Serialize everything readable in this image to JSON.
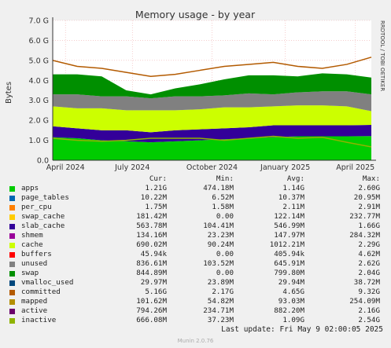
{
  "title": "Memory usage - by year",
  "ylabel": "Bytes",
  "watermark": "RRDTOOL / TOBI OETIKER",
  "y_ticks": [
    "0.0",
    "1.0 G",
    "2.0 G",
    "3.0 G",
    "4.0 G",
    "5.0 G",
    "6.0 G",
    "7.0 G"
  ],
  "x_ticks": [
    "April 2024",
    "July 2024",
    "October 2024",
    "January 2025",
    "April 2025"
  ],
  "legend_header": {
    "cur": "Cur:",
    "min": "Min:",
    "avg": "Avg:",
    "max": "Max:"
  },
  "legend": [
    {
      "name": "apps",
      "color": "#00cc00",
      "cur": "1.21G",
      "min": "474.18M",
      "avg": "1.14G",
      "max": "2.60G"
    },
    {
      "name": "page_tables",
      "color": "#0066b3",
      "cur": "10.22M",
      "min": "6.52M",
      "avg": "10.37M",
      "max": "20.95M"
    },
    {
      "name": "per_cpu",
      "color": "#ff8000",
      "cur": "1.75M",
      "min": "1.58M",
      "avg": "2.11M",
      "max": "2.91M"
    },
    {
      "name": "swap_cache",
      "color": "#ffcc00",
      "cur": "181.42M",
      "min": "0.00",
      "avg": "122.14M",
      "max": "232.77M"
    },
    {
      "name": "slab_cache",
      "color": "#330099",
      "cur": "563.78M",
      "min": "104.41M",
      "avg": "546.99M",
      "max": "1.66G"
    },
    {
      "name": "shmem",
      "color": "#990099",
      "cur": "134.16M",
      "min": "23.23M",
      "avg": "147.97M",
      "max": "284.32M"
    },
    {
      "name": "cache",
      "color": "#ccff00",
      "cur": "690.02M",
      "min": "90.24M",
      "avg": "1012.21M",
      "max": "2.29G"
    },
    {
      "name": "buffers",
      "color": "#ff0000",
      "cur": "45.94k",
      "min": "0.00",
      "avg": "405.94k",
      "max": "4.62M"
    },
    {
      "name": "unused",
      "color": "#808080",
      "cur": "836.61M",
      "min": "103.52M",
      "avg": "645.91M",
      "max": "2.62G"
    },
    {
      "name": "swap",
      "color": "#008f00",
      "cur": "844.89M",
      "min": "0.00",
      "avg": "799.80M",
      "max": "2.04G"
    },
    {
      "name": "vmalloc_used",
      "color": "#00487d",
      "cur": "29.97M",
      "min": "23.89M",
      "avg": "29.94M",
      "max": "38.72M"
    },
    {
      "name": "committed",
      "color": "#b35a00",
      "cur": "5.16G",
      "min": "2.17G",
      "avg": "4.65G",
      "max": "9.32G"
    },
    {
      "name": "mapped",
      "color": "#b38f00",
      "cur": "101.62M",
      "min": "54.82M",
      "avg": "93.03M",
      "max": "254.09M"
    },
    {
      "name": "active",
      "color": "#6b006b",
      "cur": "794.26M",
      "min": "234.71M",
      "avg": "882.20M",
      "max": "2.16G"
    },
    {
      "name": "inactive",
      "color": "#8fb300",
      "cur": "666.08M",
      "min": "37.23M",
      "avg": "1.09G",
      "max": "2.54G"
    }
  ],
  "last_update": "Last update: Fri May  9 02:00:05 2025",
  "munin_version": "Munin 2.0.76",
  "chart_data": {
    "type": "area",
    "title": "Memory usage - by year",
    "ylabel": "Bytes",
    "x": [
      "2024-04",
      "2024-05",
      "2024-06",
      "2024-07",
      "2024-08",
      "2024-09",
      "2024-10",
      "2024-11",
      "2024-12",
      "2025-01",
      "2025-02",
      "2025-03",
      "2025-04",
      "2025-05"
    ],
    "ylim": [
      0,
      7000000000
    ],
    "stacked_series": [
      {
        "name": "apps",
        "values": [
          1150000000.0,
          1100000000.0,
          1000000000.0,
          950000000.0,
          900000000.0,
          950000000.0,
          1000000000.0,
          1050000000.0,
          1100000000.0,
          1150000000.0,
          1200000000.0,
          1200000000.0,
          1200000000.0,
          1210000000.0
        ]
      },
      {
        "name": "slab_cache",
        "values": [
          550000000.0,
          500000000.0,
          500000000.0,
          550000000.0,
          500000000.0,
          550000000.0,
          550000000.0,
          550000000.0,
          550000000.0,
          600000000.0,
          550000000.0,
          550000000.0,
          550000000.0,
          560000000.0
        ]
      },
      {
        "name": "cache",
        "values": [
          1000000000.0,
          1000000000.0,
          1100000000.0,
          1000000000.0,
          1100000000.0,
          1000000000.0,
          1000000000.0,
          1050000000.0,
          1000000000.0,
          950000000.0,
          1000000000.0,
          1000000000.0,
          950000000.0,
          690000000.0
        ]
      },
      {
        "name": "unused",
        "values": [
          600000000.0,
          700000000.0,
          600000000.0,
          700000000.0,
          600000000.0,
          700000000.0,
          650000000.0,
          600000000.0,
          700000000.0,
          600000000.0,
          650000000.0,
          700000000.0,
          750000000.0,
          840000000.0
        ]
      },
      {
        "name": "swap",
        "values": [
          1000000000.0,
          1000000000.0,
          1000000000.0,
          300000000.0,
          200000000.0,
          400000000.0,
          600000000.0,
          800000000.0,
          900000000.0,
          950000000.0,
          800000000.0,
          900000000.0,
          850000000.0,
          840000000.0
        ]
      }
    ],
    "line_series": [
      {
        "name": "committed",
        "values": [
          5000000000.0,
          4700000000.0,
          4600000000.0,
          4400000000.0,
          4200000000.0,
          4300000000.0,
          4500000000.0,
          4700000000.0,
          4800000000.0,
          4900000000.0,
          4700000000.0,
          4600000000.0,
          4800000000.0,
          5160000000.0
        ]
      },
      {
        "name": "inactive",
        "values": [
          1100000000.0,
          1000000000.0,
          950000000.0,
          1000000000.0,
          1100000000.0,
          1100000000.0,
          1100000000.0,
          1000000000.0,
          1100000000.0,
          1200000000.0,
          1100000000.0,
          1150000000.0,
          900000000.0,
          670000000.0
        ]
      }
    ]
  }
}
